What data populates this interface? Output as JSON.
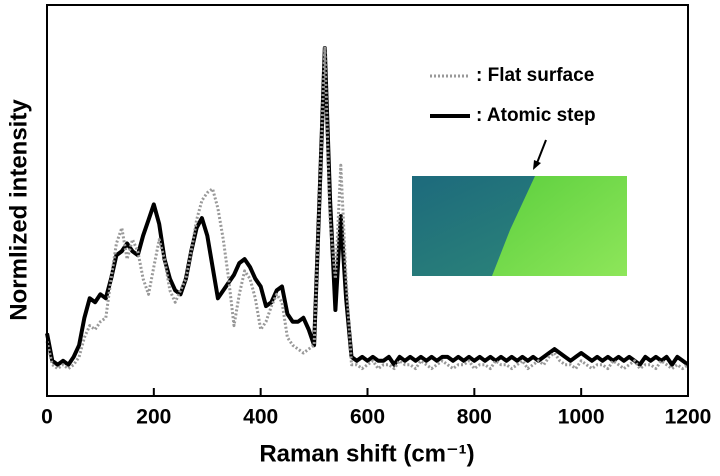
{
  "chart_data": {
    "type": "line",
    "xlabel": "Raman shift (cm⁻¹)",
    "ylabel": "Normlized intensity",
    "xlim": [
      0,
      1200
    ],
    "xticks": [
      0,
      200,
      400,
      600,
      800,
      1000,
      1200
    ],
    "ylim": [
      0,
      1
    ],
    "legend": "upper right",
    "x": [
      0,
      10,
      20,
      30,
      40,
      50,
      60,
      70,
      80,
      90,
      100,
      110,
      120,
      130,
      140,
      150,
      160,
      170,
      180,
      190,
      200,
      210,
      220,
      230,
      240,
      250,
      260,
      270,
      280,
      290,
      300,
      310,
      320,
      330,
      340,
      350,
      360,
      370,
      380,
      390,
      400,
      410,
      420,
      430,
      440,
      450,
      460,
      470,
      480,
      490,
      500,
      510,
      520,
      530,
      540,
      550,
      560,
      570,
      580,
      590,
      600,
      610,
      620,
      630,
      640,
      650,
      660,
      670,
      680,
      690,
      700,
      710,
      720,
      730,
      740,
      750,
      760,
      770,
      780,
      790,
      800,
      810,
      820,
      830,
      840,
      850,
      860,
      870,
      880,
      890,
      900,
      910,
      920,
      930,
      940,
      950,
      960,
      970,
      980,
      990,
      1000,
      1010,
      1020,
      1030,
      1040,
      1050,
      1060,
      1070,
      1080,
      1090,
      1100,
      1110,
      1120,
      1130,
      1140,
      1150,
      1160,
      1170,
      1180,
      1190,
      1200
    ],
    "series": [
      {
        "name": ": Flat surface",
        "color": "#999999",
        "line_style": "dotted",
        "values": [
          0.14,
          0.08,
          0.07,
          0.08,
          0.07,
          0.08,
          0.1,
          0.15,
          0.18,
          0.17,
          0.19,
          0.2,
          0.3,
          0.39,
          0.43,
          0.35,
          0.4,
          0.37,
          0.3,
          0.26,
          0.33,
          0.4,
          0.35,
          0.27,
          0.24,
          0.27,
          0.3,
          0.37,
          0.45,
          0.5,
          0.52,
          0.53,
          0.48,
          0.4,
          0.3,
          0.18,
          0.26,
          0.32,
          0.3,
          0.25,
          0.17,
          0.19,
          0.23,
          0.26,
          0.24,
          0.15,
          0.13,
          0.12,
          0.11,
          0.12,
          0.13,
          0.5,
          0.89,
          0.45,
          0.3,
          0.59,
          0.3,
          0.08,
          0.08,
          0.07,
          0.08,
          0.09,
          0.07,
          0.08,
          0.08,
          0.07,
          0.09,
          0.08,
          0.08,
          0.07,
          0.09,
          0.08,
          0.07,
          0.08,
          0.09,
          0.08,
          0.07,
          0.08,
          0.08,
          0.09,
          0.07,
          0.08,
          0.08,
          0.07,
          0.09,
          0.08,
          0.08,
          0.07,
          0.08,
          0.09,
          0.07,
          0.08,
          0.09,
          0.08,
          0.1,
          0.11,
          0.09,
          0.08,
          0.08,
          0.07,
          0.09,
          0.08,
          0.07,
          0.08,
          0.08,
          0.07,
          0.09,
          0.08,
          0.07,
          0.08,
          0.09,
          0.07,
          0.08,
          0.08,
          0.07,
          0.09,
          0.08,
          0.07,
          0.08,
          0.07,
          0.08
        ]
      },
      {
        "name": ": Atomic step",
        "color": "#000000",
        "line_style": "solid",
        "values": [
          0.16,
          0.09,
          0.08,
          0.09,
          0.08,
          0.1,
          0.13,
          0.2,
          0.25,
          0.24,
          0.26,
          0.25,
          0.3,
          0.36,
          0.37,
          0.39,
          0.37,
          0.36,
          0.41,
          0.45,
          0.49,
          0.44,
          0.35,
          0.3,
          0.27,
          0.26,
          0.3,
          0.37,
          0.43,
          0.455,
          0.41,
          0.33,
          0.25,
          0.27,
          0.29,
          0.31,
          0.34,
          0.35,
          0.33,
          0.3,
          0.28,
          0.23,
          0.24,
          0.27,
          0.28,
          0.21,
          0.19,
          0.19,
          0.2,
          0.17,
          0.13,
          0.5,
          0.89,
          0.5,
          0.22,
          0.46,
          0.25,
          0.1,
          0.09,
          0.1,
          0.09,
          0.1,
          0.09,
          0.09,
          0.1,
          0.08,
          0.1,
          0.09,
          0.1,
          0.09,
          0.1,
          0.09,
          0.1,
          0.09,
          0.1,
          0.1,
          0.09,
          0.1,
          0.09,
          0.1,
          0.09,
          0.1,
          0.09,
          0.1,
          0.09,
          0.1,
          0.09,
          0.1,
          0.09,
          0.1,
          0.09,
          0.1,
          0.09,
          0.1,
          0.11,
          0.12,
          0.11,
          0.1,
          0.09,
          0.1,
          0.11,
          0.1,
          0.09,
          0.1,
          0.09,
          0.1,
          0.09,
          0.1,
          0.09,
          0.1,
          0.09,
          0.08,
          0.1,
          0.09,
          0.1,
          0.09,
          0.1,
          0.08,
          0.1,
          0.09,
          0.08
        ]
      }
    ]
  }
}
